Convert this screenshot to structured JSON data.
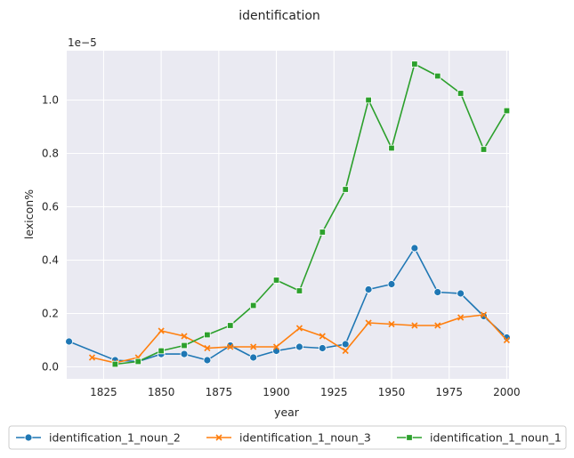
{
  "chart_data": {
    "type": "line",
    "title": "identification",
    "xlabel": "year",
    "ylabel": "lexicon%",
    "y_offset_label": "1e−5",
    "xlim": [
      1809,
      2001
    ],
    "ylim": [
      -0.045,
      1.185
    ],
    "x_ticks": [
      1825,
      1850,
      1875,
      1900,
      1925,
      1950,
      1975,
      2000
    ],
    "y_ticks": [
      0.0,
      0.2,
      0.4,
      0.6,
      0.8,
      1.0
    ],
    "y_tick_labels": [
      "0.0",
      "0.2",
      "0.4",
      "0.6",
      "0.8",
      "1.0"
    ],
    "grid": true,
    "background": "#eaeaf2",
    "legend_placement": "below",
    "series": [
      {
        "name": "identification_1_noun_2",
        "color": "#1f77b4",
        "marker": "circle",
        "x": [
          1810,
          1830,
          1840,
          1850,
          1860,
          1870,
          1880,
          1890,
          1900,
          1910,
          1920,
          1930,
          1940,
          1950,
          1960,
          1970,
          1980,
          1990,
          2000
        ],
        "y": [
          0.095,
          0.025,
          0.02,
          0.048,
          0.048,
          0.025,
          0.08,
          0.035,
          0.06,
          0.075,
          0.07,
          0.085,
          0.29,
          0.31,
          0.445,
          0.28,
          0.275,
          0.19,
          0.11
        ]
      },
      {
        "name": "identification_1_noun_3",
        "color": "#ff7f0e",
        "marker": "x",
        "x": [
          1820,
          1830,
          1840,
          1850,
          1860,
          1870,
          1880,
          1890,
          1900,
          1910,
          1920,
          1930,
          1940,
          1950,
          1960,
          1970,
          1980,
          1990,
          2000
        ],
        "y": [
          0.035,
          0.015,
          0.035,
          0.135,
          0.115,
          0.07,
          0.075,
          0.075,
          0.075,
          0.145,
          0.115,
          0.06,
          0.165,
          0.16,
          0.155,
          0.155,
          0.185,
          0.195,
          0.1
        ]
      },
      {
        "name": "identification_1_noun_1",
        "color": "#2ca02c",
        "marker": "square",
        "x": [
          1830,
          1840,
          1850,
          1860,
          1870,
          1880,
          1890,
          1900,
          1910,
          1920,
          1930,
          1940,
          1950,
          1960,
          1970,
          1980,
          1990,
          2000
        ],
        "y": [
          0.01,
          0.02,
          0.06,
          0.08,
          0.12,
          0.155,
          0.23,
          0.325,
          0.285,
          0.505,
          0.665,
          1.0,
          0.82,
          1.135,
          1.09,
          1.025,
          0.815,
          0.96
        ]
      }
    ]
  }
}
